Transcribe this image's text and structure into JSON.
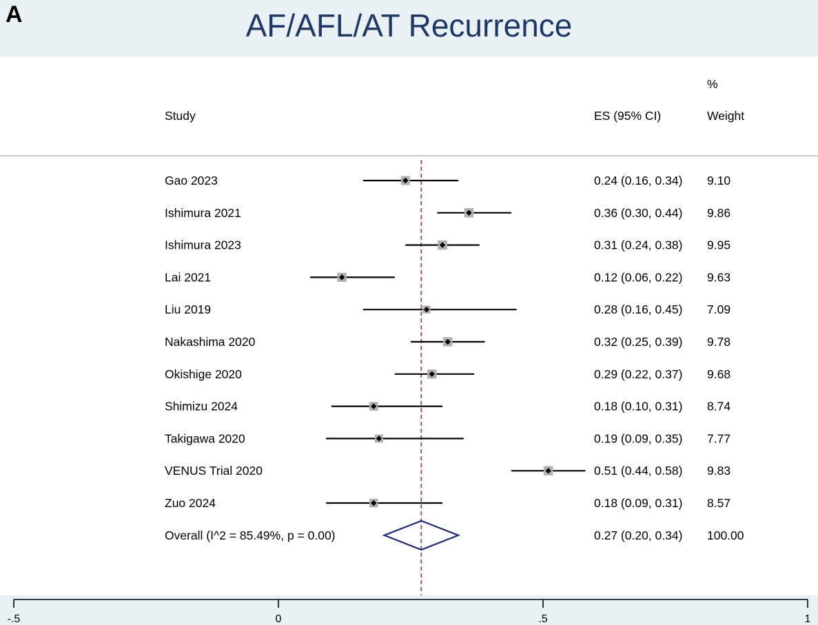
{
  "panel_label": "A",
  "chart_data": {
    "type": "forest",
    "title": "AF/AFL/AT Recurrence",
    "columns": {
      "study": "Study",
      "es": "ES (95% CI)",
      "weight_top": "%",
      "weight": "Weight"
    },
    "studies": [
      {
        "name": "Gao 2023",
        "es": 0.24,
        "lo": 0.16,
        "hi": 0.34,
        "weight": 9.1,
        "es_text": "0.24 (0.16, 0.34)",
        "weight_text": "9.10"
      },
      {
        "name": "Ishimura 2021",
        "es": 0.36,
        "lo": 0.3,
        "hi": 0.44,
        "weight": 9.86,
        "es_text": "0.36 (0.30, 0.44)",
        "weight_text": "9.86"
      },
      {
        "name": "Ishimura 2023",
        "es": 0.31,
        "lo": 0.24,
        "hi": 0.38,
        "weight": 9.95,
        "es_text": "0.31 (0.24, 0.38)",
        "weight_text": "9.95"
      },
      {
        "name": "Lai 2021",
        "es": 0.12,
        "lo": 0.06,
        "hi": 0.22,
        "weight": 9.63,
        "es_text": "0.12 (0.06, 0.22)",
        "weight_text": "9.63"
      },
      {
        "name": "Liu 2019",
        "es": 0.28,
        "lo": 0.16,
        "hi": 0.45,
        "weight": 7.09,
        "es_text": "0.28 (0.16, 0.45)",
        "weight_text": "7.09"
      },
      {
        "name": "Nakashima 2020",
        "es": 0.32,
        "lo": 0.25,
        "hi": 0.39,
        "weight": 9.78,
        "es_text": "0.32 (0.25, 0.39)",
        "weight_text": "9.78"
      },
      {
        "name": "Okishige 2020",
        "es": 0.29,
        "lo": 0.22,
        "hi": 0.37,
        "weight": 9.68,
        "es_text": "0.29 (0.22, 0.37)",
        "weight_text": "9.68"
      },
      {
        "name": "Shimizu 2024",
        "es": 0.18,
        "lo": 0.1,
        "hi": 0.31,
        "weight": 8.74,
        "es_text": "0.18 (0.10, 0.31)",
        "weight_text": "8.74"
      },
      {
        "name": "Takigawa 2020",
        "es": 0.19,
        "lo": 0.09,
        "hi": 0.35,
        "weight": 7.77,
        "es_text": "0.19 (0.09, 0.35)",
        "weight_text": "7.77"
      },
      {
        "name": "VENUS Trial 2020",
        "es": 0.51,
        "lo": 0.44,
        "hi": 0.58,
        "weight": 9.83,
        "es_text": "0.51 (0.44, 0.58)",
        "weight_text": "9.83"
      },
      {
        "name": "Zuo 2024",
        "es": 0.18,
        "lo": 0.09,
        "hi": 0.31,
        "weight": 8.57,
        "es_text": "0.18 (0.09, 0.31)",
        "weight_text": "8.57"
      }
    ],
    "overall": {
      "label": "Overall  (I^2 = 85.49%, p = 0.00)",
      "es": 0.27,
      "lo": 0.2,
      "hi": 0.34,
      "es_text": "0.27 (0.20, 0.34)",
      "weight_text": "100.00"
    },
    "x_axis": {
      "min": -0.5,
      "max": 1,
      "ticks": [
        -0.5,
        0,
        0.5,
        1
      ],
      "tick_labels": [
        "-.5",
        "0",
        ".5",
        "1"
      ]
    },
    "colors": {
      "ci_line": "#000000",
      "weight_box": "#b0b0b0",
      "point": "#000000",
      "overall_diamond": "#1f2a78",
      "reference_line": "#a0303a",
      "title": "#1f3864",
      "background": "#e9f1f4"
    }
  }
}
